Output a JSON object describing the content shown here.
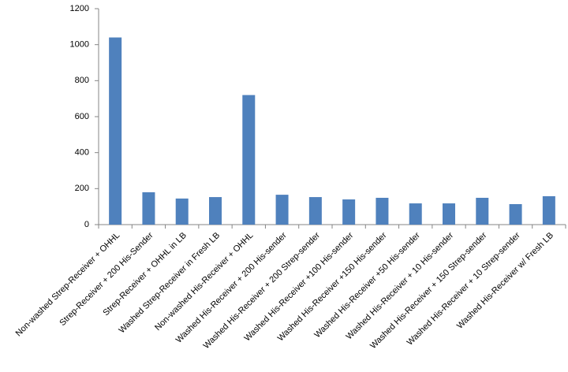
{
  "chart_data": {
    "type": "bar",
    "categories": [
      "Non-washed Strep-Receiver + OHHL",
      "Strep-Receiver + 200 His-Sender",
      "Strep-Receiver + OHHL in LB",
      "Washed Strep-Receiver in Fresh LB",
      "Non-washed His-Receiver + OHHL",
      "Washed His-Receiver + 200 His-sender",
      "Washed His-Receiver + 200 Strep-sender",
      "Washed His-Receiver +100 His-sender",
      "Washed His-Receiver +150 His-sender",
      "Washed His-Receiver +50 His-sender",
      "Washed His-Receiver + 10 His-sender",
      "Washed His-Receiver + 150 Strep-sender",
      "Washed His-Receiver + 10 Strep-sender",
      "Washed His-Receiver w/ Fresh LB"
    ],
    "values": [
      1040,
      180,
      145,
      153,
      720,
      166,
      153,
      140,
      149,
      118,
      118,
      149,
      114,
      158
    ],
    "color": "#4f81bd",
    "ylim": [
      0,
      1200
    ],
    "yticks": [
      0,
      200,
      400,
      600,
      800,
      1000,
      1200
    ],
    "grid": false
  }
}
